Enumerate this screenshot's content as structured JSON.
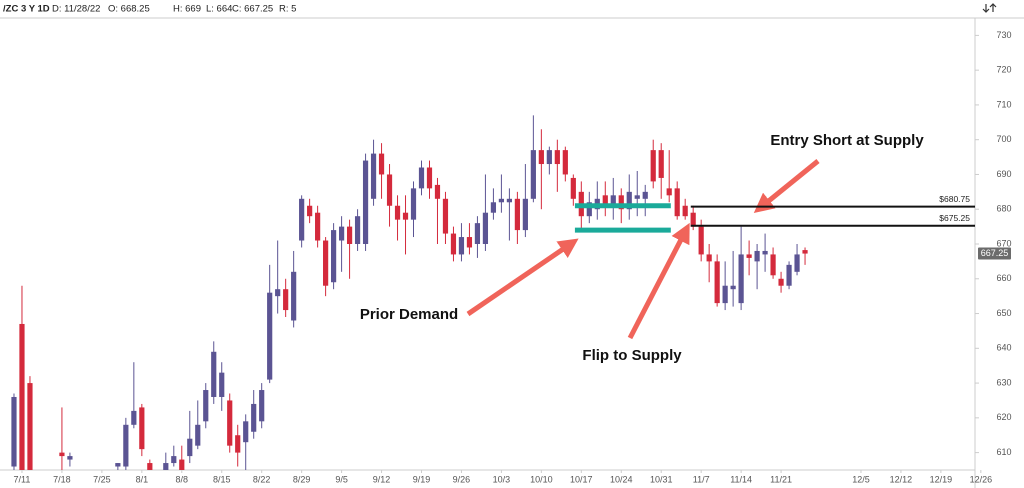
{
  "header": {
    "symbol": "/ZC 3 Y 1D",
    "date": "D: 11/28/22",
    "open": "O: 668.25",
    "high": "H: 669",
    "low": "L: 664",
    "close": "C: 667.25",
    "range": "R: 5"
  },
  "chart_data": {
    "type": "candlestick",
    "up_color": "#5b5493",
    "down_color": "#d42a3c",
    "x": [
      -1,
      0,
      1,
      5,
      6,
      12,
      13,
      14,
      15,
      16,
      18,
      19,
      20,
      21,
      22,
      23,
      24,
      25,
      26,
      27,
      28,
      29,
      30,
      31,
      32,
      33,
      34,
      35,
      36,
      37,
      38,
      39,
      40,
      41,
      42,
      43,
      44,
      45,
      46,
      47,
      48,
      49,
      50,
      51,
      52,
      53,
      54,
      55,
      56,
      57,
      58,
      59,
      60,
      61,
      62,
      63,
      64,
      65,
      66,
      67,
      68,
      69,
      70,
      71,
      72,
      73,
      74,
      75,
      76,
      77,
      78,
      79,
      80,
      81,
      82,
      83,
      84,
      85,
      86,
      87,
      88,
      89,
      90,
      91,
      92,
      93,
      94,
      95,
      96,
      97,
      98
    ],
    "open": [
      606,
      647,
      630,
      610,
      608,
      606,
      606,
      618,
      623,
      607,
      605,
      607,
      608,
      609,
      612,
      619,
      626,
      626,
      625,
      615,
      613,
      616,
      619,
      631,
      655,
      657,
      648,
      671,
      681,
      679,
      671,
      659,
      671,
      675,
      670,
      670,
      683,
      696,
      690,
      681,
      679,
      677,
      686,
      692,
      687,
      683,
      673,
      667,
      672,
      670,
      670,
      679,
      682,
      682,
      683,
      674,
      683,
      697,
      693,
      697,
      697,
      689,
      685,
      678,
      680,
      684,
      681,
      684,
      680,
      683,
      683,
      697,
      697,
      686,
      686,
      681,
      679,
      675,
      667,
      665,
      653,
      657,
      653,
      667,
      665,
      667,
      667,
      660,
      658,
      662,
      668.25
    ],
    "high": [
      627,
      658,
      632,
      623,
      610,
      607,
      620,
      636,
      624,
      608,
      610,
      612,
      612,
      622,
      625,
      630,
      642,
      636,
      627,
      618,
      621,
      628,
      630,
      664,
      671,
      660,
      668,
      684,
      683,
      681,
      672,
      676,
      678,
      677,
      680,
      696,
      700,
      699,
      693,
      684,
      684,
      688,
      694,
      694,
      689,
      685,
      675,
      676,
      676,
      678,
      690,
      686,
      690,
      686,
      685,
      693,
      707,
      703,
      698,
      700,
      698,
      690,
      688,
      685,
      688,
      688,
      689,
      686,
      690,
      691,
      687,
      700,
      699,
      697,
      688,
      683,
      681,
      677,
      670,
      667,
      665,
      668,
      675,
      671,
      670,
      673,
      669,
      662,
      665,
      670,
      669
    ],
    "low": [
      605,
      604,
      604,
      605,
      606,
      605,
      604,
      617,
      609,
      604,
      604,
      606,
      604,
      607,
      611,
      617,
      624,
      622,
      610,
      606,
      605,
      614,
      617,
      630,
      650,
      649,
      646,
      669,
      676,
      669,
      655,
      657,
      662,
      660,
      668,
      668,
      681,
      683,
      675,
      671,
      667,
      672,
      684,
      683,
      670,
      670,
      665,
      665,
      667,
      666,
      668,
      677,
      679,
      671,
      670,
      672,
      682,
      680,
      690,
      685,
      688,
      681,
      674,
      676,
      677,
      678,
      677,
      676,
      677,
      678,
      678,
      686,
      683,
      682,
      677,
      677,
      674,
      665,
      659,
      652,
      651,
      652,
      651,
      661,
      657,
      662,
      660,
      656,
      657,
      661,
      664
    ],
    "close": [
      626,
      605,
      605,
      609,
      609,
      607,
      618,
      622,
      611,
      605,
      607,
      609,
      605,
      614,
      618,
      628,
      639,
      633,
      612,
      610,
      619,
      624,
      628,
      656,
      657,
      651,
      662,
      683,
      678,
      671,
      658,
      674,
      675,
      670,
      678,
      694,
      696,
      690,
      681,
      677,
      677,
      686,
      692,
      686,
      683,
      673,
      667,
      672,
      669,
      676,
      679,
      682,
      683,
      683,
      674,
      683,
      697,
      693,
      697,
      693,
      690,
      683,
      678,
      682,
      683,
      681,
      684,
      680,
      685,
      684,
      685,
      688,
      689,
      684,
      678,
      678,
      675,
      667,
      665,
      653,
      658,
      658,
      667,
      666,
      668,
      668,
      661,
      658,
      664,
      667,
      667.25
    ],
    "xlim": [
      -2.75,
      119.27
    ],
    "xticks": [
      {
        "value": 0,
        "label": "7/11"
      },
      {
        "value": 5,
        "label": "7/18"
      },
      {
        "value": 10,
        "label": "7/25"
      },
      {
        "value": 15,
        "label": "8/1"
      },
      {
        "value": 20,
        "label": "8/8"
      },
      {
        "value": 25,
        "label": "8/15"
      },
      {
        "value": 30,
        "label": "8/22"
      },
      {
        "value": 35,
        "label": "8/29"
      },
      {
        "value": 40,
        "label": "9/5"
      },
      {
        "value": 45,
        "label": "9/12"
      },
      {
        "value": 50,
        "label": "9/19"
      },
      {
        "value": 55,
        "label": "9/26"
      },
      {
        "value": 60,
        "label": "10/3"
      },
      {
        "value": 65,
        "label": "10/10"
      },
      {
        "value": 70,
        "label": "10/17"
      },
      {
        "value": 75,
        "label": "10/24"
      },
      {
        "value": 80,
        "label": "10/31"
      },
      {
        "value": 85,
        "label": "11/7"
      },
      {
        "value": 90,
        "label": "11/14"
      },
      {
        "value": 95,
        "label": "11/21"
      },
      {
        "value": 105,
        "label": "12/5"
      },
      {
        "value": 110,
        "label": "12/12"
      },
      {
        "value": 115,
        "label": "12/19"
      },
      {
        "value": 120,
        "label": "12/26"
      }
    ],
    "ylim": [
      605,
      735
    ],
    "yticks": [
      610,
      620,
      630,
      640,
      650,
      660,
      670,
      680,
      690,
      700,
      710,
      720,
      730
    ],
    "last_price": 667.25,
    "levels": [
      {
        "value": 680.75,
        "label": "$680.75"
      },
      {
        "value": 675.25,
        "label": "$675.25"
      }
    ],
    "zones": [
      681,
      674
    ],
    "zone_color": "#1aaa9a",
    "annotations": [
      "Entry Short at Supply",
      "Prior Demand",
      "Flip to Supply"
    ]
  }
}
